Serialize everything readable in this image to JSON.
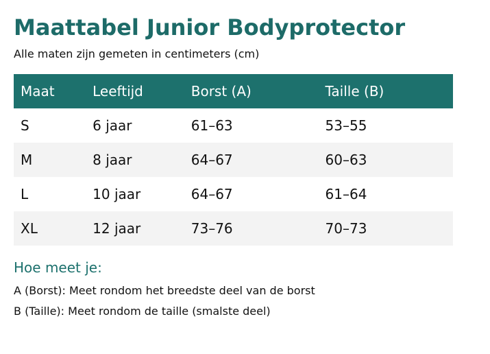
{
  "header": {
    "title": "Maattabel Junior Bodyprotector",
    "subtitle": "Alle maten zijn gemeten in centimeters (cm)"
  },
  "table": {
    "columns": [
      "Maat",
      "Leeftijd",
      "Borst (A)",
      "Taille (B)"
    ],
    "rows": [
      [
        "S",
        "6 jaar",
        "61–63",
        "53–55"
      ],
      [
        "M",
        "8 jaar",
        "64–67",
        "60–63"
      ],
      [
        "L",
        "10 jaar",
        "64–67",
        "61–64"
      ],
      [
        "XL",
        "12 jaar",
        "73–76",
        "70–73"
      ]
    ]
  },
  "notes": {
    "heading": "Hoe meet je:",
    "items": [
      "A (Borst): Meet rondom het breedste deel van de borst",
      "B (Taille): Meet rondom de taille (smalste deel)"
    ]
  }
}
